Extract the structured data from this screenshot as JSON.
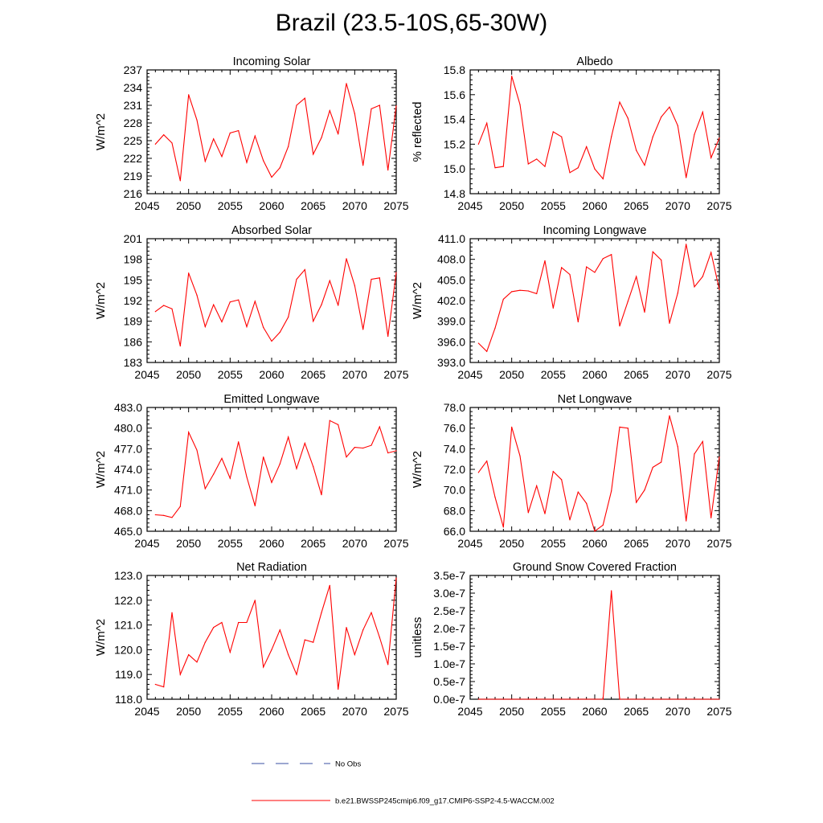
{
  "title": "Brazil (23.5-10S,65-30W)",
  "legend": [
    {
      "label": "No Obs",
      "color": "#3a4fa3",
      "dash": "dashed"
    },
    {
      "label": "b.e21.BWSSP245cmip6.f09_g17.CMIP6-SSP2-4.5-WACCM.002",
      "color": "#ff0000",
      "dash": "solid"
    }
  ],
  "chart_data": [
    {
      "type": "line",
      "title": "Incoming Solar",
      "ylabel": "W/m^2",
      "xlim": [
        2045,
        2075
      ],
      "ylim": [
        216,
        237
      ],
      "xticks": [
        2045,
        2050,
        2055,
        2060,
        2065,
        2070,
        2075
      ],
      "xtick_labels": [
        "2045",
        "2050",
        "2055",
        "2060",
        "2065",
        "2070",
        "2075"
      ],
      "yticks": [
        216,
        219,
        222,
        225,
        228,
        231,
        234,
        237
      ],
      "ytick_labels": [
        "216",
        "219",
        "222",
        "225",
        "228",
        "231",
        "234",
        "237"
      ],
      "series": [
        {
          "name": "b.e21.BWSSP245cmip6.f09_g17.CMIP6-SSP2-4.5-WACCM.002",
          "color": "#ff0000",
          "x": [
            2046,
            2047,
            2048,
            2049,
            2050,
            2051,
            2052,
            2053,
            2054,
            2055,
            2056,
            2057,
            2058,
            2059,
            2060,
            2061,
            2062,
            2063,
            2064,
            2065,
            2066,
            2067,
            2068,
            2069,
            2070,
            2071,
            2072,
            2073,
            2074,
            2075
          ],
          "y": [
            224.4,
            226.0,
            224.6,
            218.2,
            232.8,
            228.5,
            221.5,
            225.3,
            222.3,
            226.3,
            226.7,
            221.3,
            225.8,
            221.6,
            218.8,
            220.4,
            224.0,
            231.0,
            232.2,
            222.7,
            225.5,
            230.1,
            226.1,
            234.7,
            229.6,
            220.8,
            230.4,
            231.0,
            220.0,
            230.9
          ]
        }
      ]
    },
    {
      "type": "line",
      "title": "Albedo",
      "ylabel": "% reflected",
      "xlim": [
        2045,
        2075
      ],
      "ylim": [
        14.8,
        15.8
      ],
      "xticks": [
        2045,
        2050,
        2055,
        2060,
        2065,
        2070,
        2075
      ],
      "xtick_labels": [
        "2045",
        "2050",
        "2055",
        "2060",
        "2065",
        "2070",
        "2075"
      ],
      "yticks": [
        14.8,
        15.0,
        15.2,
        15.4,
        15.6,
        15.8
      ],
      "ytick_labels": [
        "14.8",
        "15.0",
        "15.2",
        "15.4",
        "15.6",
        "15.8"
      ],
      "series": [
        {
          "name": "b.e21.BWSSP245cmip6.f09_g17.CMIP6-SSP2-4.5-WACCM.002",
          "color": "#ff0000",
          "x": [
            2046,
            2047,
            2048,
            2049,
            2050,
            2051,
            2052,
            2053,
            2054,
            2055,
            2056,
            2057,
            2058,
            2059,
            2060,
            2061,
            2062,
            2063,
            2064,
            2065,
            2066,
            2067,
            2068,
            2069,
            2070,
            2071,
            2072,
            2073,
            2074,
            2075
          ],
          "y": [
            15.2,
            15.37,
            15.01,
            15.02,
            15.75,
            15.52,
            15.04,
            15.08,
            15.02,
            15.3,
            15.26,
            14.97,
            15.01,
            15.18,
            15.0,
            14.92,
            15.26,
            15.54,
            15.41,
            15.15,
            15.03,
            15.26,
            15.42,
            15.5,
            15.35,
            14.93,
            15.28,
            15.46,
            15.09,
            15.25
          ]
        }
      ]
    },
    {
      "type": "line",
      "title": "Absorbed Solar",
      "ylabel": "W/m^2",
      "xlim": [
        2045,
        2075
      ],
      "ylim": [
        183,
        201
      ],
      "xticks": [
        2045,
        2050,
        2055,
        2060,
        2065,
        2070,
        2075
      ],
      "xtick_labels": [
        "2045",
        "2050",
        "2055",
        "2060",
        "2065",
        "2070",
        "2075"
      ],
      "yticks": [
        183,
        186,
        189,
        192,
        195,
        198,
        201
      ],
      "ytick_labels": [
        "183",
        "186",
        "189",
        "192",
        "195",
        "198",
        "201"
      ],
      "series": [
        {
          "name": "b.e21.BWSSP245cmip6.f09_g17.CMIP6-SSP2-4.5-WACCM.002",
          "color": "#ff0000",
          "x": [
            2046,
            2047,
            2048,
            2049,
            2050,
            2051,
            2052,
            2053,
            2054,
            2055,
            2056,
            2057,
            2058,
            2059,
            2060,
            2061,
            2062,
            2063,
            2064,
            2065,
            2066,
            2067,
            2068,
            2069,
            2070,
            2071,
            2072,
            2073,
            2074,
            2075
          ],
          "y": [
            190.4,
            191.3,
            190.8,
            185.4,
            196.0,
            192.8,
            188.2,
            191.4,
            188.9,
            191.8,
            192.1,
            188.2,
            191.9,
            188.1,
            186.1,
            187.4,
            189.6,
            195.1,
            196.5,
            189.0,
            191.4,
            194.9,
            191.3,
            198.1,
            194.2,
            187.8,
            195.1,
            195.3,
            186.8,
            196.1
          ]
        }
      ]
    },
    {
      "type": "line",
      "title": "Incoming Longwave",
      "ylabel": "W/m^2",
      "xlim": [
        2045,
        2075
      ],
      "ylim": [
        393.0,
        411.0
      ],
      "xticks": [
        2045,
        2050,
        2055,
        2060,
        2065,
        2070,
        2075
      ],
      "xtick_labels": [
        "2045",
        "2050",
        "2055",
        "2060",
        "2065",
        "2070",
        "2075"
      ],
      "yticks": [
        393.0,
        396.0,
        399.0,
        402.0,
        405.0,
        408.0,
        411.0
      ],
      "ytick_labels": [
        "393.0",
        "396.0",
        "399.0",
        "402.0",
        "405.0",
        "408.0",
        "411.0"
      ],
      "series": [
        {
          "name": "b.e21.BWSSP245cmip6.f09_g17.CMIP6-SSP2-4.5-WACCM.002",
          "color": "#ff0000",
          "x": [
            2046,
            2047,
            2048,
            2049,
            2050,
            2051,
            2052,
            2053,
            2054,
            2055,
            2056,
            2057,
            2058,
            2059,
            2060,
            2061,
            2062,
            2063,
            2064,
            2065,
            2066,
            2067,
            2068,
            2069,
            2070,
            2071,
            2072,
            2073,
            2074,
            2075
          ],
          "y": [
            395.8,
            394.6,
            398.0,
            402.2,
            403.3,
            403.5,
            403.4,
            403.0,
            407.8,
            400.9,
            406.8,
            405.8,
            398.9,
            406.9,
            406.1,
            408.1,
            408.7,
            398.3,
            401.9,
            405.5,
            400.3,
            409.1,
            407.9,
            398.7,
            403.1,
            410.2,
            404.0,
            405.5,
            409.0,
            403.6
          ]
        }
      ]
    },
    {
      "type": "line",
      "title": "Emitted Longwave",
      "ylabel": "W/m^2",
      "xlim": [
        2045,
        2075
      ],
      "ylim": [
        465.0,
        483.0
      ],
      "xticks": [
        2045,
        2050,
        2055,
        2060,
        2065,
        2070,
        2075
      ],
      "xtick_labels": [
        "2045",
        "2050",
        "2055",
        "2060",
        "2065",
        "2070",
        "2075"
      ],
      "yticks": [
        465.0,
        468.0,
        471.0,
        474.0,
        477.0,
        480.0,
        483.0
      ],
      "ytick_labels": [
        "465.0",
        "468.0",
        "471.0",
        "474.0",
        "477.0",
        "480.0",
        "483.0"
      ],
      "series": [
        {
          "name": "b.e21.BWSSP245cmip6.f09_g17.CMIP6-SSP2-4.5-WACCM.002",
          "color": "#ff0000",
          "x": [
            2046,
            2047,
            2048,
            2049,
            2050,
            2051,
            2052,
            2053,
            2054,
            2055,
            2056,
            2057,
            2058,
            2059,
            2060,
            2061,
            2062,
            2063,
            2064,
            2065,
            2066,
            2067,
            2068,
            2069,
            2070,
            2071,
            2072,
            2073,
            2074,
            2075
          ],
          "y": [
            467.4,
            467.3,
            467.0,
            468.6,
            479.4,
            476.8,
            471.2,
            473.3,
            475.6,
            472.7,
            478.0,
            472.9,
            468.7,
            475.8,
            472.1,
            474.8,
            478.7,
            474.1,
            477.8,
            474.4,
            470.3,
            481.1,
            480.5,
            475.8,
            477.2,
            477.1,
            477.5,
            480.2,
            476.4,
            476.7
          ]
        }
      ]
    },
    {
      "type": "line",
      "title": "Net Longwave",
      "ylabel": "W/m^2",
      "xlim": [
        2045,
        2075
      ],
      "ylim": [
        66.0,
        78.0
      ],
      "xticks": [
        2045,
        2050,
        2055,
        2060,
        2065,
        2070,
        2075
      ],
      "xtick_labels": [
        "2045",
        "2050",
        "2055",
        "2060",
        "2065",
        "2070",
        "2075"
      ],
      "yticks": [
        66.0,
        68.0,
        70.0,
        72.0,
        74.0,
        76.0,
        78.0
      ],
      "ytick_labels": [
        "66.0",
        "68.0",
        "70.0",
        "72.0",
        "74.0",
        "76.0",
        "78.0"
      ],
      "series": [
        {
          "name": "b.e21.BWSSP245cmip6.f09_g17.CMIP6-SSP2-4.5-WACCM.002",
          "color": "#ff0000",
          "x": [
            2046,
            2047,
            2048,
            2049,
            2050,
            2051,
            2052,
            2053,
            2054,
            2055,
            2056,
            2057,
            2058,
            2059,
            2060,
            2061,
            2062,
            2063,
            2064,
            2065,
            2066,
            2067,
            2068,
            2069,
            2070,
            2071,
            2072,
            2073,
            2074,
            2075
          ],
          "y": [
            71.7,
            72.8,
            69.3,
            66.4,
            76.1,
            73.3,
            67.8,
            70.4,
            67.7,
            71.8,
            71.0,
            67.1,
            69.8,
            68.7,
            66.0,
            66.6,
            69.9,
            76.1,
            76.0,
            68.8,
            70.0,
            72.2,
            72.7,
            77.2,
            74.2,
            67.0,
            73.5,
            74.7,
            67.3,
            73.2
          ]
        }
      ]
    },
    {
      "type": "line",
      "title": "Net Radiation",
      "ylabel": "W/m^2",
      "xlim": [
        2045,
        2075
      ],
      "ylim": [
        118.0,
        123.0
      ],
      "xticks": [
        2045,
        2050,
        2055,
        2060,
        2065,
        2070,
        2075
      ],
      "xtick_labels": [
        "2045",
        "2050",
        "2055",
        "2060",
        "2065",
        "2070",
        "2075"
      ],
      "yticks": [
        118.0,
        119.0,
        120.0,
        121.0,
        122.0,
        123.0
      ],
      "ytick_labels": [
        "118.0",
        "119.0",
        "120.0",
        "121.0",
        "122.0",
        "123.0"
      ],
      "series": [
        {
          "name": "b.e21.BWSSP245cmip6.f09_g17.CMIP6-SSP2-4.5-WACCM.002",
          "color": "#ff0000",
          "x": [
            2046,
            2047,
            2048,
            2049,
            2050,
            2051,
            2052,
            2053,
            2054,
            2055,
            2056,
            2057,
            2058,
            2059,
            2060,
            2061,
            2062,
            2063,
            2064,
            2065,
            2066,
            2067,
            2068,
            2069,
            2070,
            2071,
            2072,
            2073,
            2074,
            2075
          ],
          "y": [
            118.6,
            118.5,
            121.5,
            119.0,
            119.8,
            119.5,
            120.3,
            120.9,
            121.1,
            119.9,
            121.1,
            121.1,
            122.0,
            119.3,
            120.0,
            120.8,
            119.8,
            119.0,
            120.4,
            120.3,
            121.5,
            122.6,
            118.4,
            120.9,
            119.8,
            120.8,
            121.5,
            120.5,
            119.4,
            122.9
          ]
        }
      ]
    },
    {
      "type": "line",
      "title": "Ground Snow Covered Fraction",
      "ylabel": "unitless",
      "xlim": [
        2045,
        2075
      ],
      "ylim": [
        0.0,
        3.5e-07
      ],
      "xticks": [
        2045,
        2050,
        2055,
        2060,
        2065,
        2070,
        2075
      ],
      "xtick_labels": [
        "2045",
        "2050",
        "2055",
        "2060",
        "2065",
        "2070",
        "2075"
      ],
      "yticks": [
        0.0,
        5e-08,
        1e-07,
        1.5e-07,
        2e-07,
        2.5e-07,
        3e-07,
        3.5e-07
      ],
      "ytick_labels": [
        "0.0e-7",
        "0.5e-7",
        "1.0e-7",
        "1.5e-7",
        "2.0e-7",
        "2.5e-7",
        "3.0e-7",
        "3.5e-7"
      ],
      "series": [
        {
          "name": "b.e21.BWSSP245cmip6.f09_g17.CMIP6-SSP2-4.5-WACCM.002",
          "color": "#ff0000",
          "x": [
            2046,
            2047,
            2048,
            2049,
            2050,
            2051,
            2052,
            2053,
            2054,
            2055,
            2056,
            2057,
            2058,
            2059,
            2060,
            2061,
            2062,
            2063,
            2064,
            2065,
            2066,
            2067,
            2068,
            2069,
            2070,
            2071,
            2072,
            2073,
            2074,
            2075
          ],
          "y": [
            0,
            0,
            0,
            0,
            0,
            0,
            0,
            0,
            0,
            0,
            0,
            0,
            0,
            0,
            0,
            0,
            3.07e-07,
            0,
            0,
            0,
            0,
            0,
            0,
            0,
            0,
            0,
            0,
            0,
            0,
            0
          ]
        }
      ]
    }
  ]
}
